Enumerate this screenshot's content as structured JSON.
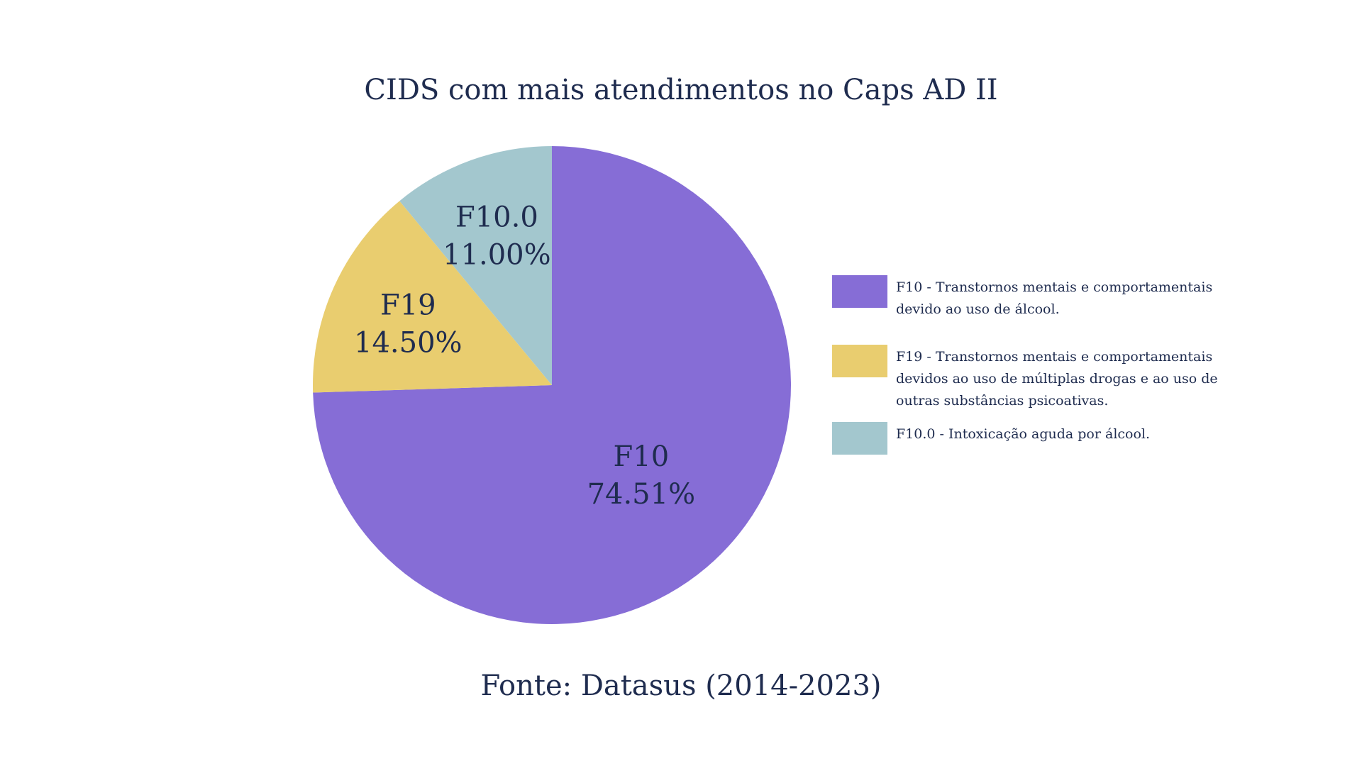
{
  "chart_data": {
    "type": "pie",
    "title": "CIDS com mais atendimentos no Caps AD II",
    "slices": [
      {
        "label": "F10",
        "value": 74.51,
        "value_label": "74.51%",
        "color": "#866dd6"
      },
      {
        "label": "F19",
        "value": 14.5,
        "value_label": "14.50%",
        "color": "#e9cd6f"
      },
      {
        "label": "F10.0",
        "value": 11.0,
        "value_label": "11.00%",
        "color": "#a3c7ce"
      }
    ],
    "legend": [
      {
        "text": "F10 - Transtornos mentais e comportamentais\ndevido ao uso de álcool.",
        "color": "#866dd6"
      },
      {
        "text": "F19 -  Transtornos mentais e comportamentais\ndevidos ao uso de múltiplas drogas e ao uso de\noutras substâncias psicoativas.",
        "color": "#e9cd6f"
      },
      {
        "text": " F10.0 - Intoxicação aguda por álcool.",
        "color": "#a3c7ce"
      }
    ],
    "legend_position": "right",
    "source": "Fonte: Datasus (2014-2023)"
  }
}
